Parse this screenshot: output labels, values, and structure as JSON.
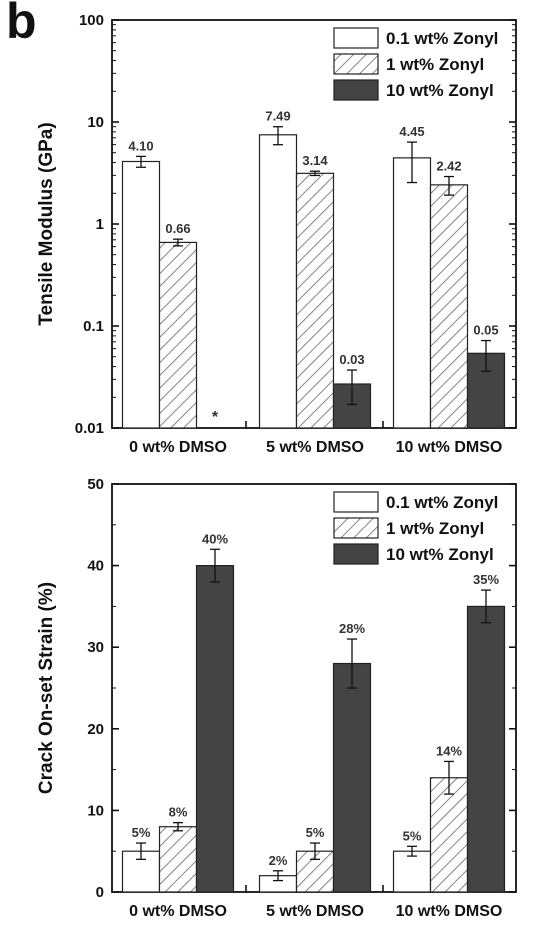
{
  "panel_label": "b",
  "chart_data": [
    {
      "type": "bar",
      "scale": "log",
      "ylabel": "Tensile Modulus (GPa)",
      "ylim": [
        0.01,
        100
      ],
      "yticks": [
        "0.01",
        "0.1",
        "1",
        "10",
        "100"
      ],
      "categories": [
        "0 wt% DMSO",
        "5 wt% DMSO",
        "10 wt% DMSO"
      ],
      "legend_position": "top-right",
      "series": [
        {
          "name": "0.1 wt% Zonyl",
          "fill": "white",
          "values": [
            4.1,
            7.49,
            4.45
          ],
          "errors": [
            0.5,
            1.5,
            1.9
          ],
          "labels": [
            "4.10",
            "7.49",
            "4.45"
          ]
        },
        {
          "name": "1    wt% Zonyl",
          "fill": "hatch",
          "values": [
            0.66,
            3.14,
            2.42
          ],
          "errors": [
            0.05,
            0.15,
            0.5
          ],
          "labels": [
            "0.66",
            "3.14",
            "2.42"
          ]
        },
        {
          "name": "10  wt% Zonyl",
          "fill": "dark",
          "values": [
            null,
            0.027,
            0.054
          ],
          "errors": [
            null,
            0.01,
            0.018
          ],
          "labels": [
            "*",
            "0.03",
            "0.05"
          ]
        }
      ]
    },
    {
      "type": "bar",
      "scale": "linear",
      "ylabel": "Crack On-set Strain (%)",
      "ylim": [
        0,
        50
      ],
      "yticks": [
        "0",
        "10",
        "20",
        "30",
        "40",
        "50"
      ],
      "categories": [
        "0 wt% DMSO",
        "5 wt% DMSO",
        "10 wt% DMSO"
      ],
      "legend_position": "top-right",
      "series": [
        {
          "name": "0.1 wt% Zonyl",
          "fill": "white",
          "values": [
            5,
            2,
            5
          ],
          "errors": [
            1,
            0.6,
            0.6
          ],
          "labels": [
            "5%",
            "2%",
            "5%"
          ]
        },
        {
          "name": "1    wt% Zonyl",
          "fill": "hatch",
          "values": [
            8,
            5,
            14
          ],
          "errors": [
            0.5,
            1,
            2
          ],
          "labels": [
            "8%",
            "5%",
            "14%"
          ]
        },
        {
          "name": "10  wt% Zonyl",
          "fill": "dark",
          "values": [
            40,
            28,
            35
          ],
          "errors": [
            2,
            3,
            2
          ],
          "labels": [
            "40%",
            "28%",
            "35%"
          ]
        }
      ]
    }
  ]
}
